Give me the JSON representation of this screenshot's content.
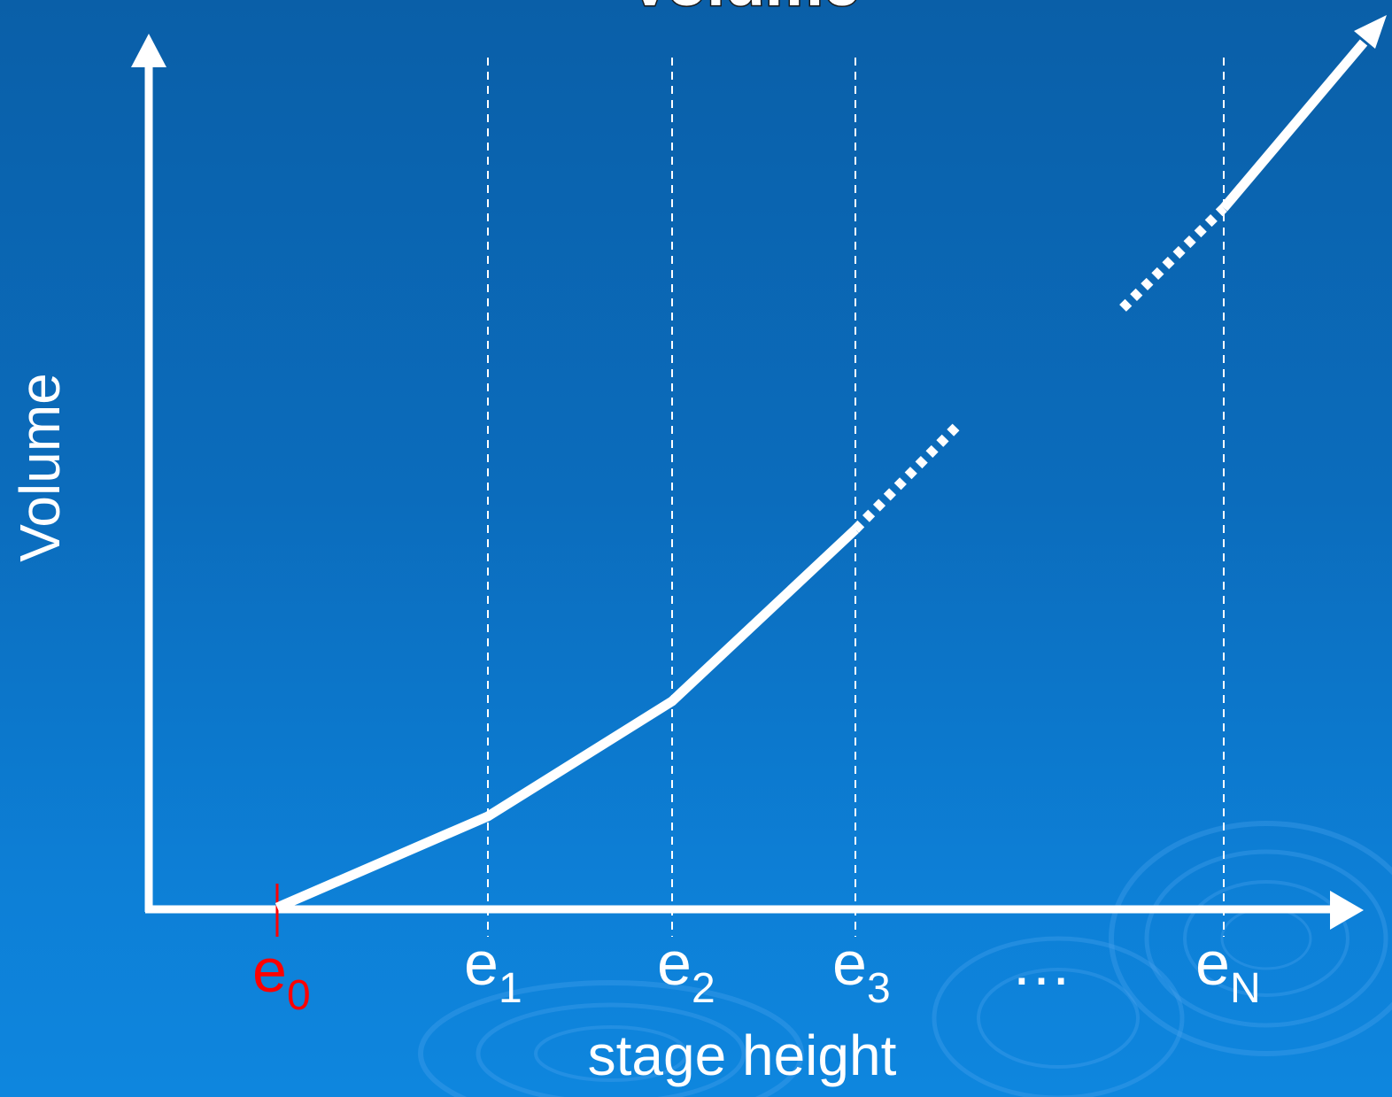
{
  "title": "Volume",
  "axes": {
    "y_label": "Volume",
    "x_label": "stage height"
  },
  "ticks": [
    {
      "base": "e",
      "sub": "0",
      "color": "#ff0000"
    },
    {
      "base": "e",
      "sub": "1",
      "color": "#ffffff"
    },
    {
      "base": "e",
      "sub": "2",
      "color": "#ffffff"
    },
    {
      "base": "e",
      "sub": "3",
      "color": "#ffffff"
    },
    {
      "base": "e",
      "sub": "N",
      "color": "#ffffff"
    }
  ],
  "ellipsis": "…",
  "colors": {
    "background_top": "#0a5fa8",
    "background_bottom": "#0e86de",
    "line": "#ffffff",
    "accent": "#ff0000"
  }
}
